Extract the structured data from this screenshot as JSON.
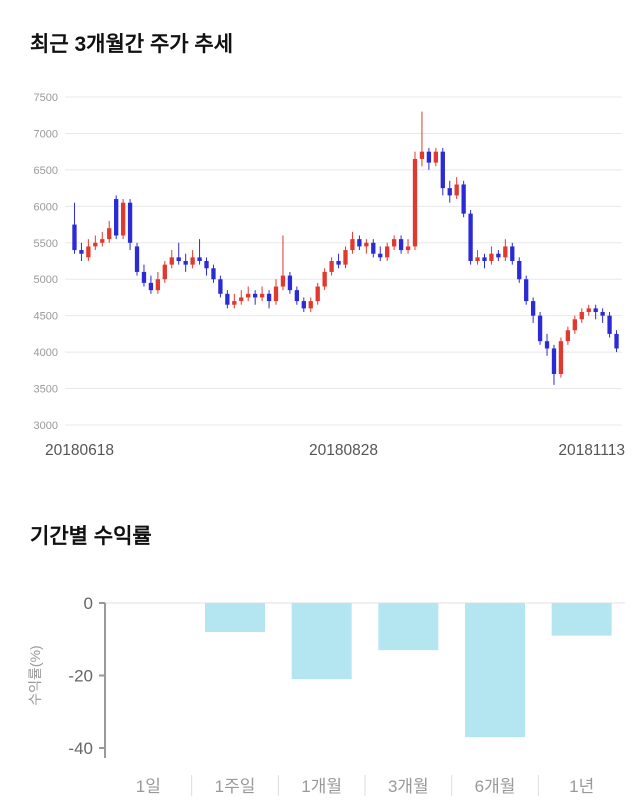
{
  "sections": {
    "price": {
      "title": "최근 3개월간 주가 추세"
    },
    "returns": {
      "title": "기간별 수익률"
    }
  },
  "colors": {
    "candle_up": "#e0392f",
    "candle_down": "#2b2bd5",
    "bar_fill": "#b3e6f0",
    "grid": "#e8e8e8",
    "axis": "#999999",
    "tick_text": "#666666",
    "muted_text": "#999999"
  },
  "chart_data": [
    {
      "type": "candlestick",
      "title": "최근 3개월간 주가 추세",
      "ylim": [
        3000,
        7500
      ],
      "yticks": [
        3000,
        3500,
        4000,
        4500,
        5000,
        5500,
        6000,
        6500,
        7000,
        7500
      ],
      "x_axis_labels": [
        "20180618",
        "20180828",
        "20181113"
      ],
      "grid": true,
      "up_color": "#e0392f",
      "down_color": "#2b2bd5",
      "candles_ohlc": [
        [
          5750,
          6050,
          5350,
          5400
        ],
        [
          5400,
          5500,
          5250,
          5350
        ],
        [
          5300,
          5550,
          5250,
          5450
        ],
        [
          5450,
          5600,
          5400,
          5500
        ],
        [
          5500,
          5650,
          5450,
          5550
        ],
        [
          5550,
          5800,
          5500,
          5700
        ],
        [
          6100,
          6150,
          5550,
          5600
        ],
        [
          5600,
          6100,
          5550,
          6050
        ],
        [
          6050,
          6100,
          5400,
          5500
        ],
        [
          5450,
          5500,
          5050,
          5100
        ],
        [
          5100,
          5200,
          4900,
          4950
        ],
        [
          4950,
          5050,
          4800,
          4850
        ],
        [
          4850,
          5100,
          4800,
          5000
        ],
        [
          5000,
          5250,
          4950,
          5200
        ],
        [
          5200,
          5400,
          5150,
          5300
        ],
        [
          5300,
          5500,
          5200,
          5250
        ],
        [
          5250,
          5350,
          5100,
          5200
        ],
        [
          5200,
          5400,
          5150,
          5300
        ],
        [
          5300,
          5550,
          5200,
          5250
        ],
        [
          5250,
          5300,
          5050,
          5150
        ],
        [
          5150,
          5200,
          4950,
          5000
        ],
        [
          5000,
          5050,
          4750,
          4800
        ],
        [
          4800,
          4850,
          4600,
          4650
        ],
        [
          4650,
          4800,
          4600,
          4700
        ],
        [
          4700,
          4850,
          4650,
          4750
        ],
        [
          4750,
          4900,
          4700,
          4800
        ],
        [
          4800,
          4850,
          4650,
          4750
        ],
        [
          4750,
          4900,
          4700,
          4800
        ],
        [
          4800,
          4850,
          4600,
          4700
        ],
        [
          4700,
          5000,
          4650,
          4900
        ],
        [
          4900,
          5600,
          4850,
          5050
        ],
        [
          5050,
          5100,
          4800,
          4850
        ],
        [
          4850,
          4900,
          4650,
          4700
        ],
        [
          4700,
          4750,
          4550,
          4600
        ],
        [
          4600,
          4750,
          4550,
          4700
        ],
        [
          4700,
          4950,
          4650,
          4900
        ],
        [
          4900,
          5150,
          4850,
          5100
        ],
        [
          5100,
          5300,
          5050,
          5250
        ],
        [
          5250,
          5350,
          5150,
          5200
        ],
        [
          5200,
          5450,
          5150,
          5400
        ],
        [
          5400,
          5650,
          5350,
          5550
        ],
        [
          5550,
          5600,
          5400,
          5450
        ],
        [
          5450,
          5550,
          5350,
          5500
        ],
        [
          5500,
          5550,
          5300,
          5350
        ],
        [
          5350,
          5450,
          5250,
          5300
        ],
        [
          5300,
          5500,
          5250,
          5450
        ],
        [
          5450,
          5600,
          5400,
          5550
        ],
        [
          5550,
          5600,
          5350,
          5400
        ],
        [
          5400,
          5550,
          5350,
          5450
        ],
        [
          5450,
          6750,
          5400,
          6650
        ],
        [
          6650,
          7300,
          6550,
          6750
        ],
        [
          6750,
          6800,
          6500,
          6600
        ],
        [
          6600,
          6800,
          6550,
          6750
        ],
        [
          6750,
          6800,
          6150,
          6250
        ],
        [
          6250,
          6350,
          6050,
          6150
        ],
        [
          6150,
          6400,
          6100,
          6300
        ],
        [
          6300,
          6350,
          5850,
          5900
        ],
        [
          5900,
          5950,
          5200,
          5250
        ],
        [
          5250,
          5400,
          5200,
          5300
        ],
        [
          5300,
          5350,
          5150,
          5250
        ],
        [
          5250,
          5450,
          5200,
          5350
        ],
        [
          5350,
          5400,
          5250,
          5300
        ],
        [
          5300,
          5550,
          5250,
          5450
        ],
        [
          5450,
          5500,
          5200,
          5250
        ],
        [
          5250,
          5300,
          4950,
          5000
        ],
        [
          5000,
          5050,
          4650,
          4700
        ],
        [
          4700,
          4750,
          4400,
          4500
        ],
        [
          4500,
          4550,
          4100,
          4150
        ],
        [
          4150,
          4250,
          3950,
          4050
        ],
        [
          4050,
          4100,
          3550,
          3700
        ],
        [
          3700,
          4200,
          3650,
          4150
        ],
        [
          4150,
          4350,
          4100,
          4300
        ],
        [
          4300,
          4500,
          4250,
          4450
        ],
        [
          4450,
          4600,
          4400,
          4550
        ],
        [
          4550,
          4650,
          4500,
          4600
        ],
        [
          4600,
          4650,
          4450,
          4550
        ],
        [
          4550,
          4600,
          4400,
          4500
        ],
        [
          4500,
          4550,
          4200,
          4250
        ],
        [
          4250,
          4300,
          4000,
          4050
        ]
      ]
    },
    {
      "type": "bar",
      "title": "기간별 수익률",
      "categories": [
        "1일",
        "1주일",
        "1개월",
        "3개월",
        "6개월",
        "1년"
      ],
      "values": [
        0,
        -8,
        -21,
        -13,
        -37,
        -9
      ],
      "ylabel": "수익률(%)",
      "yticks": [
        0,
        -20,
        -40
      ],
      "ylim": [
        -40,
        0
      ],
      "grid": false,
      "legend": "none",
      "bar_color": "#b3e6f0"
    }
  ]
}
